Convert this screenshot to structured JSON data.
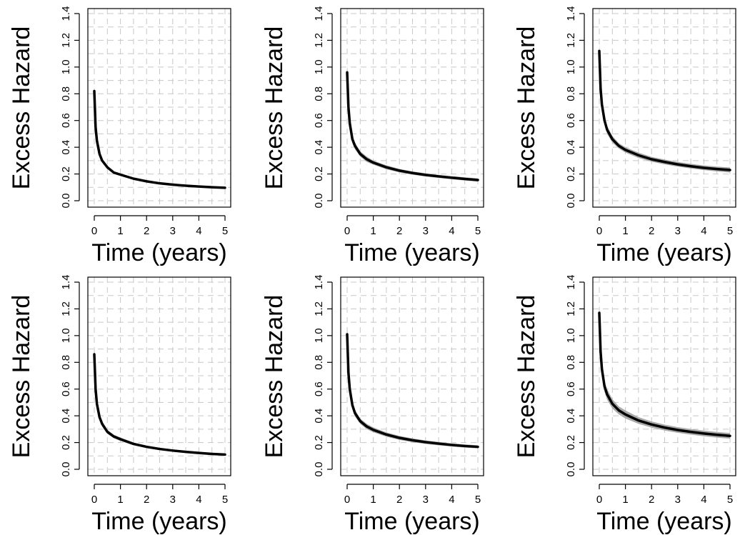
{
  "chart_data": [
    {
      "type": "line",
      "xlabel": "Time (years)",
      "ylabel": "Excess Hazard",
      "xlim": [
        0,
        5
      ],
      "ylim": [
        0,
        1.4
      ],
      "x_ticks": [
        0,
        1,
        2,
        3,
        4,
        5
      ],
      "y_ticks": [
        "0.0",
        "0.2",
        "0.4",
        "0.6",
        "0.8",
        "1.0",
        "1.2",
        "1.4"
      ],
      "grid": true,
      "series": [
        {
          "x": [
            0,
            0.05,
            0.1,
            0.2,
            0.3,
            0.5,
            0.75,
            1,
            1.5,
            2,
            2.5,
            3,
            3.5,
            4,
            4.5,
            5
          ],
          "y": [
            0.82,
            0.55,
            0.45,
            0.35,
            0.3,
            0.25,
            0.21,
            0.195,
            0.165,
            0.145,
            0.13,
            0.12,
            0.112,
            0.106,
            0.101,
            0.097
          ]
        }
      ],
      "band": {
        "lower": [
          0.78,
          0.52,
          0.43,
          0.34,
          0.29,
          0.24,
          0.205,
          0.185,
          0.158,
          0.14,
          0.126,
          0.116,
          0.108,
          0.102,
          0.097,
          0.093
        ],
        "upper": [
          0.86,
          0.58,
          0.47,
          0.37,
          0.31,
          0.26,
          0.22,
          0.205,
          0.172,
          0.152,
          0.136,
          0.125,
          0.116,
          0.11,
          0.105,
          0.101
        ]
      }
    },
    {
      "type": "line",
      "xlabel": "Time (years)",
      "ylabel": "Excess Hazard",
      "xlim": [
        0,
        5
      ],
      "ylim": [
        0,
        1.4
      ],
      "x_ticks": [
        0,
        1,
        2,
        3,
        4,
        5
      ],
      "y_ticks": [
        "0.0",
        "0.2",
        "0.4",
        "0.6",
        "0.8",
        "1.0",
        "1.2",
        "1.4"
      ],
      "grid": true,
      "series": [
        {
          "x": [
            0,
            0.05,
            0.1,
            0.2,
            0.3,
            0.5,
            0.75,
            1,
            1.5,
            2,
            2.5,
            3,
            3.5,
            4,
            4.5,
            5
          ],
          "y": [
            0.96,
            0.7,
            0.58,
            0.46,
            0.41,
            0.35,
            0.31,
            0.285,
            0.25,
            0.225,
            0.207,
            0.193,
            0.182,
            0.172,
            0.163,
            0.155
          ]
        }
      ],
      "band": {
        "lower": [
          0.9,
          0.65,
          0.54,
          0.43,
          0.385,
          0.33,
          0.29,
          0.27,
          0.235,
          0.212,
          0.195,
          0.181,
          0.17,
          0.16,
          0.151,
          0.143
        ],
        "upper": [
          1.02,
          0.75,
          0.62,
          0.49,
          0.435,
          0.37,
          0.33,
          0.3,
          0.265,
          0.238,
          0.219,
          0.205,
          0.194,
          0.184,
          0.175,
          0.167
        ]
      }
    },
    {
      "type": "line",
      "xlabel": "Time (years)",
      "ylabel": "Excess Hazard",
      "xlim": [
        0,
        5
      ],
      "ylim": [
        0,
        1.4
      ],
      "x_ticks": [
        0,
        1,
        2,
        3,
        4,
        5
      ],
      "y_ticks": [
        "0.0",
        "0.2",
        "0.4",
        "0.6",
        "0.8",
        "1.0",
        "1.2",
        "1.4"
      ],
      "grid": true,
      "series": [
        {
          "x": [
            0,
            0.05,
            0.1,
            0.2,
            0.3,
            0.5,
            0.75,
            1,
            1.5,
            2,
            2.5,
            3,
            3.5,
            4,
            4.5,
            5
          ],
          "y": [
            1.12,
            0.84,
            0.72,
            0.6,
            0.53,
            0.46,
            0.41,
            0.38,
            0.34,
            0.31,
            0.29,
            0.272,
            0.258,
            0.246,
            0.237,
            0.23
          ]
        }
      ],
      "band": {
        "lower": [
          1.06,
          0.79,
          0.68,
          0.57,
          0.5,
          0.435,
          0.39,
          0.36,
          0.32,
          0.292,
          0.272,
          0.255,
          0.241,
          0.229,
          0.219,
          0.211
        ],
        "upper": [
          1.18,
          0.89,
          0.76,
          0.63,
          0.56,
          0.485,
          0.43,
          0.4,
          0.36,
          0.328,
          0.308,
          0.29,
          0.276,
          0.264,
          0.255,
          0.249
        ]
      }
    },
    {
      "type": "line",
      "xlabel": "Time (years)",
      "ylabel": "Excess Hazard",
      "xlim": [
        0,
        5
      ],
      "ylim": [
        0,
        1.4
      ],
      "x_ticks": [
        0,
        1,
        2,
        3,
        4,
        5
      ],
      "y_ticks": [
        "0.0",
        "0.2",
        "0.4",
        "0.6",
        "0.8",
        "1.0",
        "1.2",
        "1.4"
      ],
      "grid": true,
      "series": [
        {
          "x": [
            0,
            0.05,
            0.1,
            0.2,
            0.3,
            0.5,
            0.75,
            1,
            1.5,
            2,
            2.5,
            3,
            3.5,
            4,
            4.5,
            5
          ],
          "y": [
            0.86,
            0.6,
            0.49,
            0.39,
            0.34,
            0.28,
            0.245,
            0.225,
            0.19,
            0.168,
            0.152,
            0.14,
            0.13,
            0.122,
            0.115,
            0.11
          ]
        }
      ],
      "band": {
        "lower": [
          0.8,
          0.56,
          0.46,
          0.37,
          0.32,
          0.265,
          0.232,
          0.212,
          0.18,
          0.159,
          0.144,
          0.132,
          0.122,
          0.114,
          0.107,
          0.102
        ],
        "upper": [
          0.92,
          0.64,
          0.52,
          0.41,
          0.36,
          0.295,
          0.258,
          0.238,
          0.2,
          0.177,
          0.16,
          0.148,
          0.138,
          0.13,
          0.123,
          0.118
        ]
      }
    },
    {
      "type": "line",
      "xlabel": "Time (years)",
      "ylabel": "Excess Hazard",
      "xlim": [
        0,
        5
      ],
      "ylim": [
        0,
        1.4
      ],
      "x_ticks": [
        0,
        1,
        2,
        3,
        4,
        5
      ],
      "y_ticks": [
        "0.0",
        "0.2",
        "0.4",
        "0.6",
        "0.8",
        "1.0",
        "1.2",
        "1.4"
      ],
      "grid": true,
      "series": [
        {
          "x": [
            0,
            0.05,
            0.1,
            0.2,
            0.3,
            0.5,
            0.75,
            1,
            1.5,
            2,
            2.5,
            3,
            3.5,
            4,
            4.5,
            5
          ],
          "y": [
            1.01,
            0.72,
            0.6,
            0.48,
            0.42,
            0.36,
            0.32,
            0.295,
            0.26,
            0.235,
            0.217,
            0.203,
            0.192,
            0.182,
            0.174,
            0.168
          ]
        }
      ],
      "band": {
        "lower": [
          0.95,
          0.67,
          0.56,
          0.45,
          0.395,
          0.34,
          0.3,
          0.277,
          0.244,
          0.22,
          0.203,
          0.19,
          0.179,
          0.17,
          0.162,
          0.156
        ],
        "upper": [
          1.07,
          0.77,
          0.64,
          0.51,
          0.445,
          0.38,
          0.34,
          0.313,
          0.276,
          0.25,
          0.231,
          0.216,
          0.205,
          0.194,
          0.186,
          0.18
        ]
      }
    },
    {
      "type": "line",
      "xlabel": "Time (years)",
      "ylabel": "Excess Hazard",
      "xlim": [
        0,
        5
      ],
      "ylim": [
        0,
        1.4
      ],
      "x_ticks": [
        0,
        1,
        2,
        3,
        4,
        5
      ],
      "y_ticks": [
        "0.0",
        "0.2",
        "0.4",
        "0.6",
        "0.8",
        "1.0",
        "1.2",
        "1.4"
      ],
      "grid": true,
      "series": [
        {
          "x": [
            0,
            0.05,
            0.1,
            0.2,
            0.3,
            0.5,
            0.75,
            1,
            1.5,
            2,
            2.5,
            3,
            3.5,
            4,
            4.5,
            5
          ],
          "y": [
            1.17,
            0.88,
            0.75,
            0.62,
            0.56,
            0.49,
            0.44,
            0.41,
            0.365,
            0.335,
            0.312,
            0.294,
            0.28,
            0.268,
            0.258,
            0.25
          ]
        }
      ],
      "band": {
        "lower": [
          1.1,
          0.82,
          0.7,
          0.58,
          0.52,
          0.455,
          0.41,
          0.38,
          0.34,
          0.312,
          0.29,
          0.273,
          0.259,
          0.247,
          0.237,
          0.229
        ],
        "upper": [
          1.24,
          0.94,
          0.8,
          0.66,
          0.6,
          0.525,
          0.47,
          0.44,
          0.39,
          0.358,
          0.334,
          0.315,
          0.301,
          0.289,
          0.279,
          0.271
        ]
      }
    }
  ]
}
